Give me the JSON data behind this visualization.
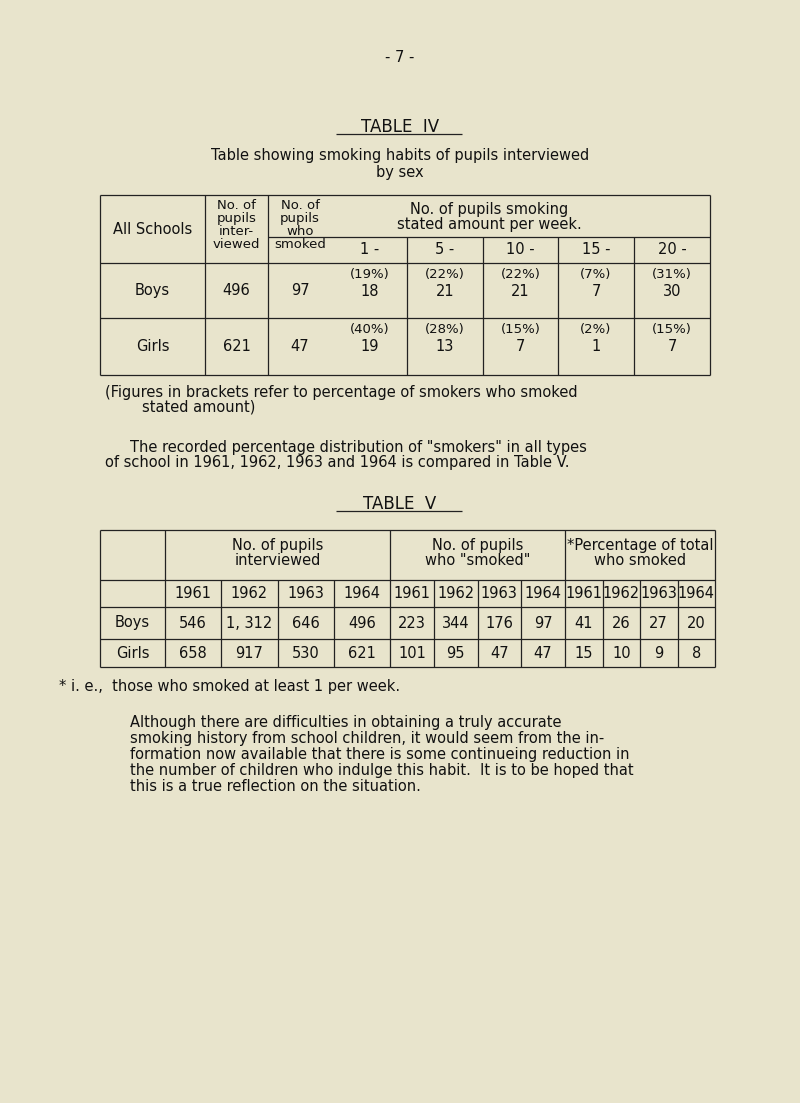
{
  "bg_color": "#e8e4cc",
  "page_number": "- 7 -",
  "table4_title": "TABLE  IV",
  "table4_subtitle1": "Table showing smoking habits of pupils interviewed",
  "table4_subtitle2": "by sex",
  "table4_sub_cols": [
    "1 -",
    "5 -",
    "10 -",
    "15 -",
    "20 -"
  ],
  "table4_boys_pct": [
    "(19%)",
    "(22%)",
    "(22%)",
    "(7%)",
    "(31%)"
  ],
  "table4_boys_vals": [
    "18",
    "21",
    "21",
    "7",
    "30"
  ],
  "table4_boys_interviewed": "496",
  "table4_boys_smoked": "97",
  "table4_girls_pct": [
    "(40%)",
    "(28%)",
    "(15%)",
    "(2%)",
    "(15%)"
  ],
  "table4_girls_vals": [
    "19",
    "13",
    "7",
    "1",
    "7"
  ],
  "table4_girls_interviewed": "621",
  "table4_girls_smoked": "47",
  "table4_footnote1": "(Figures in brackets refer to percentage of smokers who smoked",
  "table4_footnote2": "        stated amount)",
  "para1_line1": "The recorded percentage distribution of \"smokers\" in all types",
  "para1_line2": "of school in 1961, 1962, 1963 and 1964 is compared in Table V.",
  "table5_title": "TABLE  V",
  "table5_group1_header1": "No. of pupils",
  "table5_group1_header2": "interviewed",
  "table5_group2_header1": "No. of pupils",
  "table5_group2_header2": "who \"smoked\"",
  "table5_group3_header1": "*Percentage of total",
  "table5_group3_header2": "who smoked",
  "table5_years": [
    "1961",
    "1962",
    "1963",
    "1964"
  ],
  "table5_boys_interviewed": [
    "546",
    "1, 312",
    "646",
    "496"
  ],
  "table5_boys_smoked": [
    "223",
    "344",
    "176",
    "97"
  ],
  "table5_boys_pct": [
    "41",
    "26",
    "27",
    "20"
  ],
  "table5_girls_interviewed": [
    "658",
    "917",
    "530",
    "621"
  ],
  "table5_girls_smoked": [
    "101",
    "95",
    "47",
    "47"
  ],
  "table5_girls_pct": [
    "15",
    "10",
    "9",
    "8"
  ],
  "table5_footnote": "* i. e.,  those who smoked at least 1 per week.",
  "para2_lines": [
    "Although there are difficulties in obtaining a truly accurate",
    "smoking history from school children, it would seem from the in-",
    "formation now available that there is some continueing reduction in",
    "the number of children who indulge this habit.  It is to be hoped that",
    "this is a true reflection on the situation."
  ]
}
